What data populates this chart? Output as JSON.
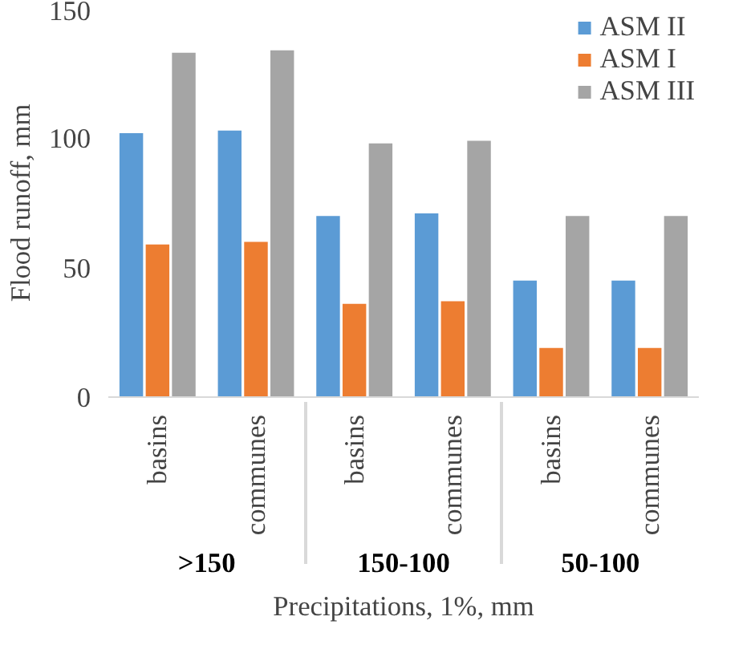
{
  "chart_data": {
    "type": "bar",
    "ylabel": "Flood runoff, mm",
    "xlabel": "Precipitations, 1%, mm",
    "categories": [
      "basins",
      "communes",
      "basins",
      "communes",
      "basins",
      "communes"
    ],
    "annotations": [
      ">150",
      "150-100",
      "50-100"
    ],
    "series": [
      {
        "name": "ASM II",
        "color": "#5b9bd5",
        "values": [
          102,
          103,
          70,
          71,
          45,
          45
        ]
      },
      {
        "name": "ASM I",
        "color": "#ed7d31",
        "values": [
          59,
          60,
          36,
          37,
          19,
          19
        ]
      },
      {
        "name": "ASM III",
        "color": "#a5a5a5",
        "values": [
          133,
          134,
          98,
          99,
          70,
          70
        ]
      }
    ],
    "ylim": [
      0,
      150
    ],
    "yticks": [
      0,
      50,
      100,
      150
    ],
    "grid": false,
    "legend": "top right"
  }
}
